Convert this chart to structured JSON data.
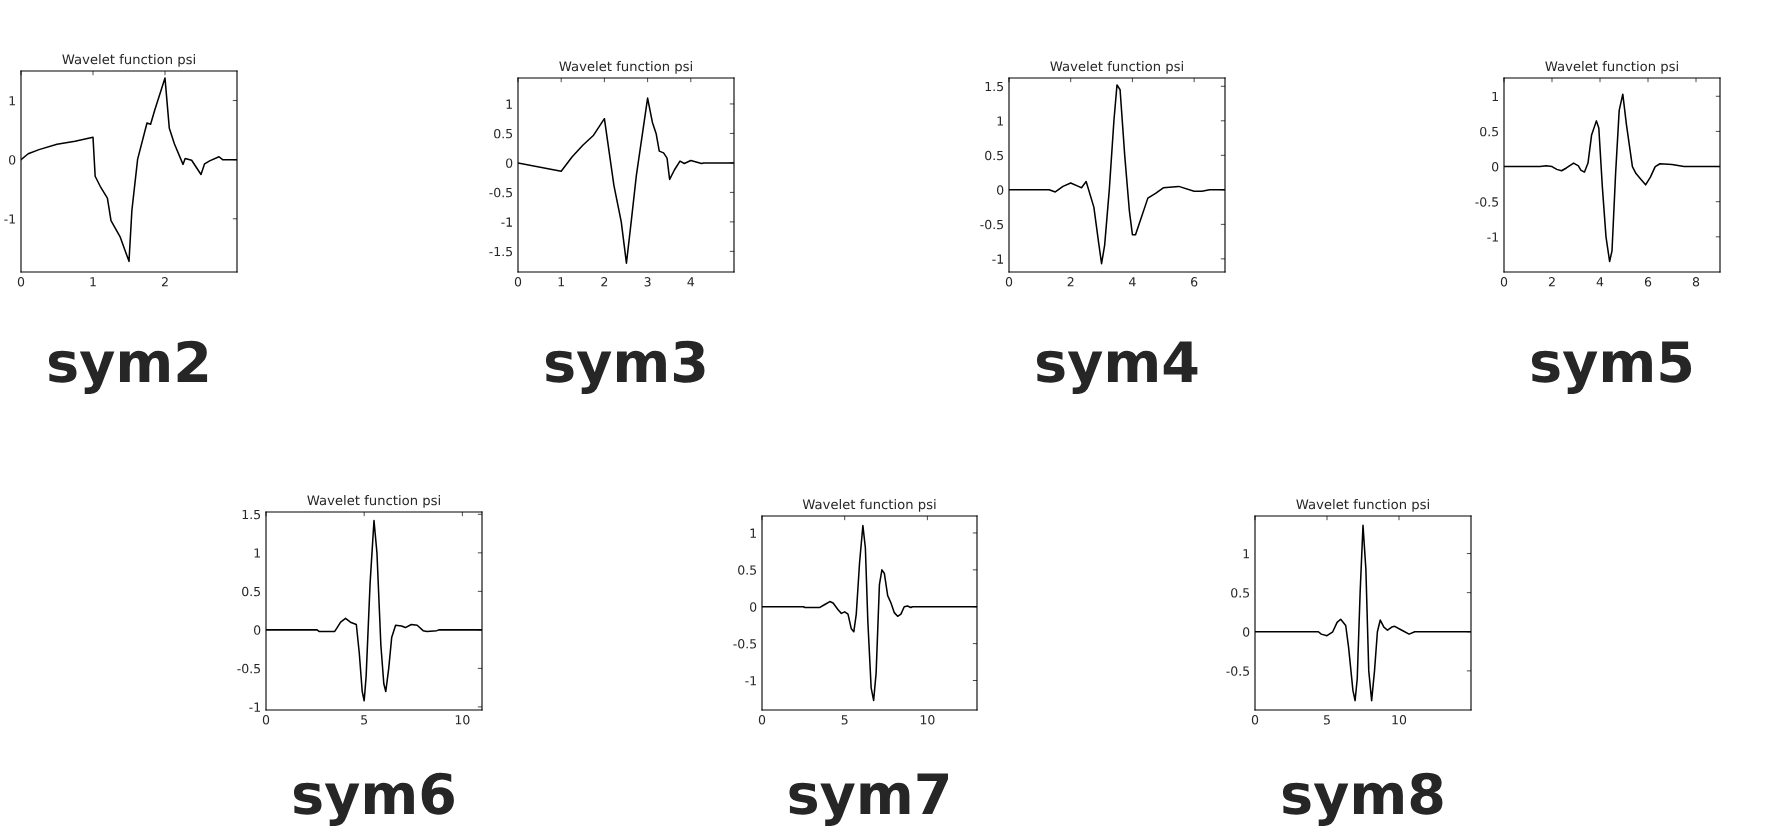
{
  "chart_data": [
    {
      "type": "line",
      "title": "Wavelet function psi",
      "annotations": [
        "sym2"
      ],
      "color": "#000000",
      "xlim": [
        0,
        3
      ],
      "ylim": [
        -1.9,
        1.5
      ],
      "xticks": [
        0,
        1,
        2
      ],
      "yticks": [
        -1,
        0,
        1
      ],
      "x": [
        0,
        0.1,
        0.25,
        0.5,
        0.75,
        1,
        1.03,
        1.1,
        1.2,
        1.25,
        1.375,
        1.5,
        1.54,
        1.62,
        1.75,
        1.8,
        1.86,
        2,
        2.06,
        2.13,
        2.25,
        2.28,
        2.37,
        2.5,
        2.55,
        2.62,
        2.75,
        2.8,
        3
      ],
      "values": [
        0,
        0.1,
        0.17,
        0.26,
        0.31,
        0.38,
        -0.28,
        -0.45,
        -0.65,
        -1.03,
        -1.3,
        -1.72,
        -0.86,
        0.01,
        0.62,
        0.6,
        0.85,
        1.38,
        0.53,
        0.27,
        -0.08,
        0.02,
        -0.01,
        -0.25,
        -0.07,
        -0.02,
        0.05,
        0,
        0
      ]
    },
    {
      "type": "line",
      "title": "Wavelet function psi",
      "annotations": [
        "sym3"
      ],
      "color": "#000000",
      "xlim": [
        0,
        5
      ],
      "ylim": [
        -1.85,
        1.44
      ],
      "xticks": [
        0,
        1,
        2,
        3,
        4
      ],
      "yticks": [
        -1.5,
        -1,
        -0.5,
        0,
        0.5,
        1
      ],
      "x": [
        0,
        1,
        1.25,
        1.5,
        1.75,
        2,
        2.22,
        2.39,
        2.51,
        2.62,
        2.74,
        3,
        3.11,
        3.2,
        3.27,
        3.37,
        3.45,
        3.51,
        3.62,
        3.75,
        3.85,
        4,
        4.25,
        4.3,
        5
      ],
      "values": [
        0,
        -0.14,
        0.1,
        0.3,
        0.47,
        0.75,
        -0.38,
        -1,
        -1.7,
        -1,
        -0.21,
        1.1,
        0.69,
        0.49,
        0.2,
        0.17,
        0.08,
        -0.28,
        -0.12,
        0.03,
        -0.01,
        0.04,
        -0.01,
        0,
        0
      ]
    },
    {
      "type": "line",
      "title": "Wavelet function psi",
      "annotations": [
        "sym4"
      ],
      "color": "#000000",
      "xlim": [
        0,
        7
      ],
      "ylim": [
        -1.19,
        1.62
      ],
      "xticks": [
        0,
        2,
        4,
        6
      ],
      "yticks": [
        -1,
        -0.5,
        0,
        0.5,
        1,
        1.5
      ],
      "x": [
        0,
        1.3,
        1.5,
        1.75,
        2,
        2.25,
        2.35,
        2.5,
        2.75,
        2.9,
        3,
        3.1,
        3.25,
        3.4,
        3.5,
        3.6,
        3.75,
        3.9,
        4,
        4.1,
        4.25,
        4.5,
        4.75,
        5,
        5.5,
        6,
        6.25,
        6.5,
        7
      ],
      "values": [
        0,
        0,
        -0.03,
        0.05,
        0.1,
        0.05,
        0.03,
        0.12,
        -0.25,
        -0.75,
        -1.07,
        -0.8,
        0,
        1,
        1.52,
        1.45,
        0.5,
        -0.3,
        -0.65,
        -0.65,
        -0.45,
        -0.12,
        -0.05,
        0.03,
        0.05,
        -0.02,
        -0.02,
        0,
        0
      ]
    },
    {
      "type": "line",
      "title": "Wavelet function psi",
      "annotations": [
        "sym5"
      ],
      "color": "#000000",
      "xlim": [
        0,
        9
      ],
      "ylim": [
        -1.5,
        1.26
      ],
      "xticks": [
        0,
        2,
        4,
        6,
        8
      ],
      "yticks": [
        -1,
        -0.5,
        0,
        0.5,
        1
      ],
      "x": [
        0,
        1.5,
        1.75,
        2,
        2.2,
        2.4,
        2.6,
        2.9,
        3.1,
        3.2,
        3.35,
        3.5,
        3.65,
        3.85,
        3.95,
        4.1,
        4.25,
        4.4,
        4.5,
        4.65,
        4.8,
        4.95,
        5.1,
        5.35,
        5.5,
        5.7,
        5.9,
        6.1,
        6.3,
        6.5,
        7,
        7.5,
        9
      ],
      "values": [
        0,
        0,
        0.01,
        0,
        -0.04,
        -0.06,
        -0.02,
        0.05,
        0.01,
        -0.05,
        -0.08,
        0.05,
        0.45,
        0.65,
        0.55,
        -0.3,
        -1,
        -1.35,
        -1.2,
        -0.1,
        0.8,
        1.03,
        0.6,
        0,
        -0.1,
        -0.18,
        -0.26,
        -0.15,
        0,
        0.04,
        0.03,
        0,
        0
      ]
    },
    {
      "type": "line",
      "title": "Wavelet function psi",
      "annotations": [
        "sym6"
      ],
      "color": "#000000",
      "xlim": [
        0,
        11
      ],
      "ylim": [
        -1.04,
        1.53
      ],
      "xticks": [
        0,
        5,
        10
      ],
      "yticks": [
        -1,
        -0.5,
        0,
        0.5,
        1,
        1.5
      ],
      "x": [
        0,
        2.6,
        2.7,
        3.5,
        3.6,
        3.8,
        4.05,
        4.3,
        4.6,
        4.75,
        4.9,
        5,
        5.1,
        5.3,
        5.5,
        5.65,
        5.85,
        6,
        6.1,
        6.25,
        6.4,
        6.6,
        6.9,
        7.1,
        7.4,
        7.7,
        8,
        8.2,
        8.7,
        8.8,
        11
      ],
      "values": [
        0,
        0,
        -0.02,
        -0.02,
        0.02,
        0.1,
        0.15,
        0.1,
        0.07,
        -0.3,
        -0.8,
        -0.92,
        -0.6,
        0.6,
        1.42,
        1,
        -0.2,
        -0.7,
        -0.8,
        -0.5,
        -0.1,
        0.06,
        0.05,
        0.03,
        0.07,
        0.06,
        -0.01,
        -0.02,
        -0.01,
        0,
        0
      ]
    },
    {
      "type": "line",
      "title": "Wavelet function psi",
      "annotations": [
        "sym7"
      ],
      "color": "#000000",
      "xlim": [
        0,
        13
      ],
      "ylim": [
        -1.4,
        1.23
      ],
      "xticks": [
        0,
        5,
        10
      ],
      "yticks": [
        -1,
        -0.5,
        0,
        0.5,
        1
      ],
      "x": [
        0,
        2.5,
        2.6,
        3.5,
        3.8,
        4.1,
        4.3,
        4.6,
        4.8,
        5,
        5.2,
        5.4,
        5.55,
        5.7,
        5.9,
        6.1,
        6.25,
        6.4,
        6.6,
        6.75,
        6.9,
        7.1,
        7.25,
        7.4,
        7.6,
        7.8,
        8,
        8.2,
        8.4,
        8.6,
        8.8,
        9,
        9.1,
        13
      ],
      "values": [
        0,
        0,
        -0.01,
        -0.01,
        0.03,
        0.07,
        0.05,
        -0.04,
        -0.09,
        -0.07,
        -0.1,
        -0.3,
        -0.34,
        -0.1,
        0.6,
        1.1,
        0.8,
        -0.2,
        -1.1,
        -1.27,
        -0.9,
        0.3,
        0.5,
        0.45,
        0.15,
        0.05,
        -0.08,
        -0.13,
        -0.1,
        0,
        0.01,
        -0.01,
        0,
        0
      ]
    },
    {
      "type": "line",
      "title": "Wavelet function psi",
      "annotations": [
        "sym8"
      ],
      "color": "#000000",
      "xlim": [
        0,
        15
      ],
      "ylim": [
        -1.0,
        1.48
      ],
      "xticks": [
        0,
        5,
        10
      ],
      "yticks": [
        -0.5,
        0,
        0.5,
        1
      ],
      "x": [
        0,
        4.4,
        4.6,
        5,
        5.4,
        5.7,
        5.95,
        6.3,
        6.5,
        6.8,
        6.95,
        7.1,
        7.3,
        7.5,
        7.7,
        7.9,
        8.1,
        8.3,
        8.5,
        8.7,
        8.95,
        9.2,
        9.5,
        9.7,
        10.2,
        10.7,
        11.1,
        15
      ],
      "values": [
        0,
        0,
        -0.03,
        -0.05,
        0,
        0.12,
        0.16,
        0.08,
        -0.2,
        -0.75,
        -0.88,
        -0.6,
        0.5,
        1.36,
        0.8,
        -0.5,
        -0.88,
        -0.5,
        0,
        0.15,
        0.06,
        0.02,
        0.06,
        0.07,
        0.02,
        -0.03,
        0,
        0
      ]
    }
  ]
}
